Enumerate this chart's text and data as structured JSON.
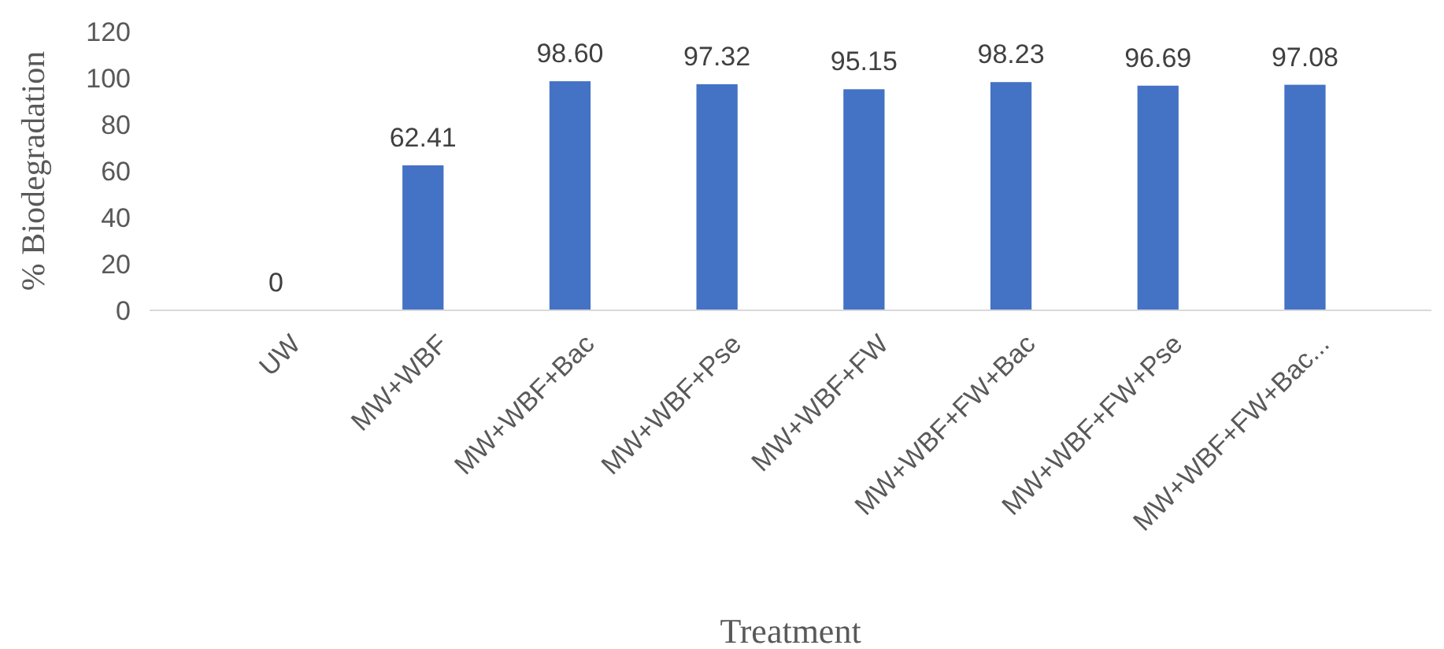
{
  "chart_data": {
    "type": "bar",
    "xlabel": "Treatment",
    "ylabel": "% Biodegradation",
    "categories": [
      "UW",
      "MW+WBF",
      "MW+WBF+Bac",
      "MW+WBF+Pse",
      "MW+WBF+FW",
      "MW+WBF+FW+Bac",
      "MW+WBF+FW+Pse",
      "MW+WBF+FW+Bac..."
    ],
    "values": [
      0,
      62.41,
      98.6,
      97.32,
      95.15,
      98.23,
      96.69,
      97.08
    ],
    "value_labels": [
      "0",
      "62.41",
      "98.60",
      "97.32",
      "95.15",
      "98.23",
      "96.69",
      "97.08"
    ],
    "color": "#4472c4",
    "ylim": [
      0,
      120
    ],
    "yticks": [
      0,
      20,
      40,
      60,
      80,
      100,
      120
    ],
    "grid": false
  }
}
